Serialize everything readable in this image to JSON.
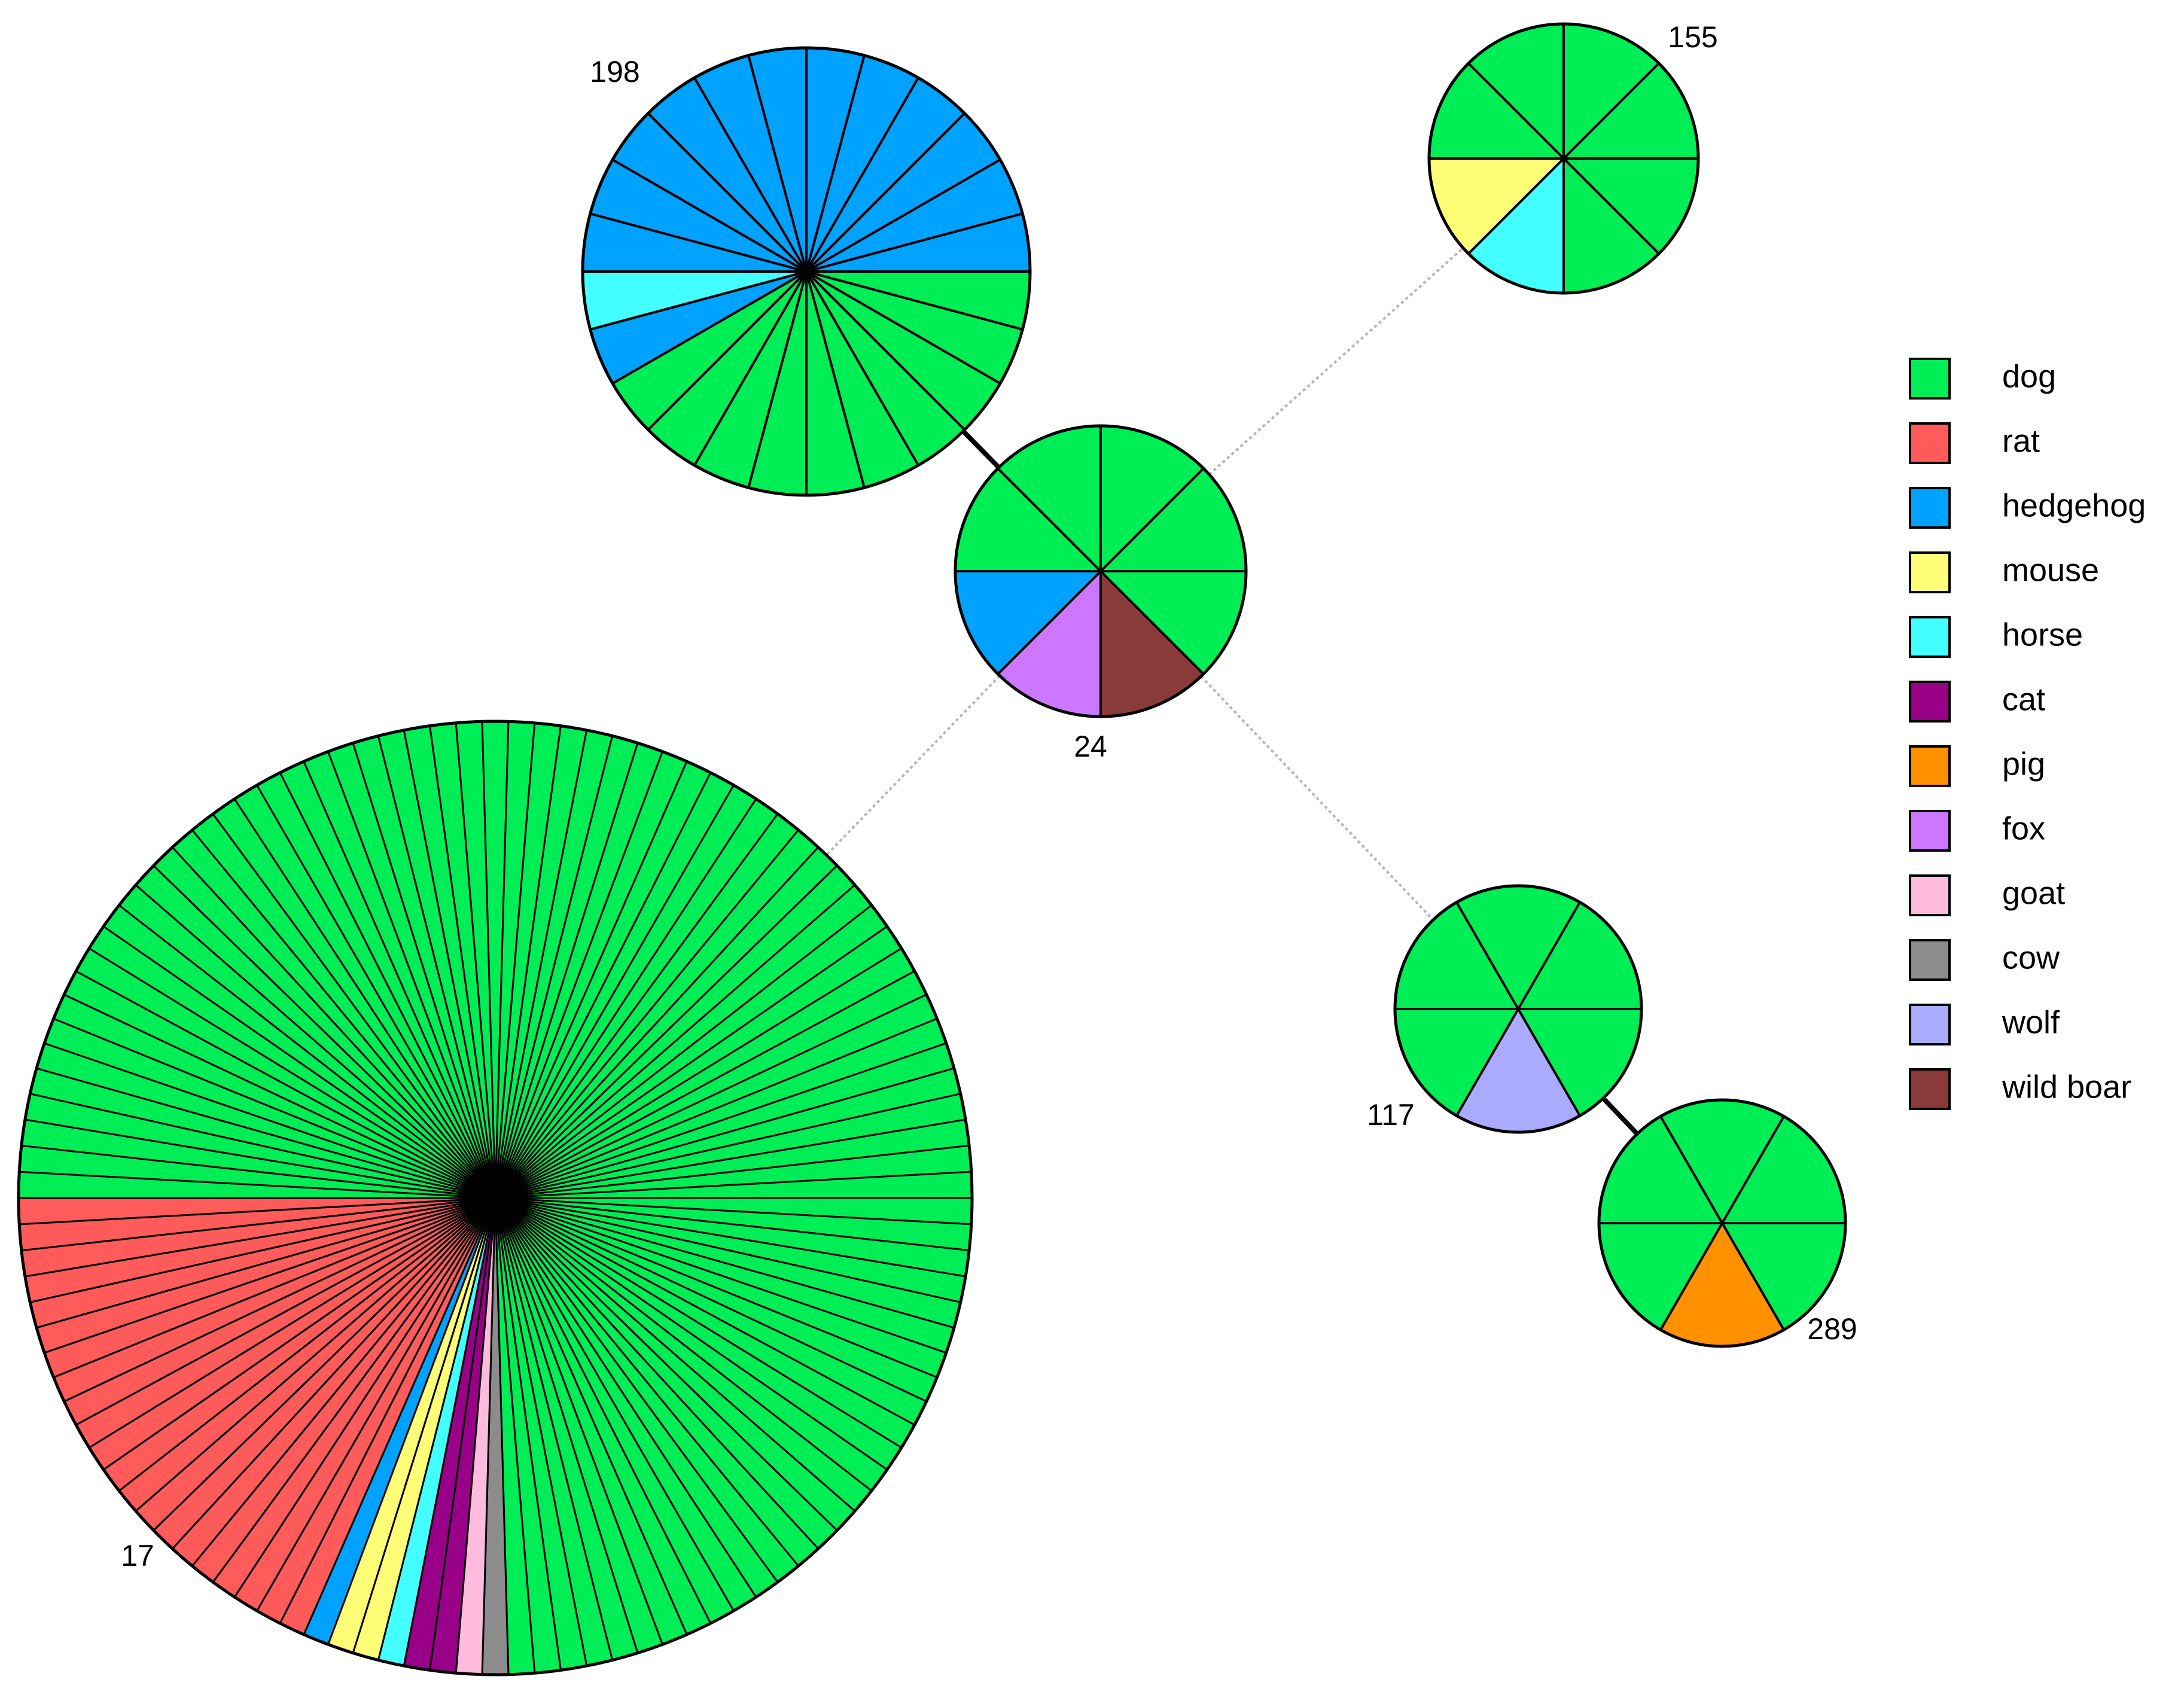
{
  "legend": [
    {
      "key": "dog",
      "label": "dog",
      "color": "#00ee55"
    },
    {
      "key": "rat",
      "label": "rat",
      "color": "#ff5b5b"
    },
    {
      "key": "hedgehog",
      "label": "hedgehog",
      "color": "#00a2ff"
    },
    {
      "key": "mouse",
      "label": "mouse",
      "color": "#ffff77"
    },
    {
      "key": "horse",
      "label": "horse",
      "color": "#44ffff"
    },
    {
      "key": "cat",
      "label": "cat",
      "color": "#990088"
    },
    {
      "key": "pig",
      "label": "pig",
      "color": "#ff9100"
    },
    {
      "key": "fox",
      "label": "fox",
      "color": "#cc77ff"
    },
    {
      "key": "goat",
      "label": "goat",
      "color": "#ffbbdd"
    },
    {
      "key": "cow",
      "label": "cow",
      "color": "#8c8c8c"
    },
    {
      "key": "wolf",
      "label": "wolf",
      "color": "#aaaaff"
    },
    {
      "key": "wild boar",
      "label": "wild boar",
      "color": "#8b3a3a"
    }
  ],
  "nodes": [
    {
      "id": "n198",
      "label": "198",
      "total": 24,
      "slices": [
        {
          "host": "dog",
          "count": 10
        },
        {
          "host": "hedgehog",
          "count": 1
        },
        {
          "host": "horse",
          "count": 1
        },
        {
          "host": "hedgehog",
          "count": 12
        }
      ]
    },
    {
      "id": "n155",
      "label": "155",
      "total": 8,
      "slices": [
        {
          "host": "dog",
          "count": 2
        },
        {
          "host": "horse",
          "count": 1
        },
        {
          "host": "mouse",
          "count": 1
        },
        {
          "host": "dog",
          "count": 4
        }
      ]
    },
    {
      "id": "n24",
      "label": "24",
      "total": 8,
      "slices": [
        {
          "host": "dog",
          "count": 1
        },
        {
          "host": "wild boar",
          "count": 1
        },
        {
          "host": "fox",
          "count": 1
        },
        {
          "host": "hedgehog",
          "count": 1
        },
        {
          "host": "dog",
          "count": 4
        }
      ]
    },
    {
      "id": "n117",
      "label": "117",
      "total": 6,
      "slices": [
        {
          "host": "dog",
          "count": 1
        },
        {
          "host": "wolf",
          "count": 1
        },
        {
          "host": "dog",
          "count": 4
        }
      ]
    },
    {
      "id": "n289",
      "label": "289",
      "total": 6,
      "slices": [
        {
          "host": "dog",
          "count": 1
        },
        {
          "host": "pig",
          "count": 1
        },
        {
          "host": "dog",
          "count": 4
        }
      ]
    },
    {
      "id": "n17",
      "label": "17",
      "total": 114,
      "slices": [
        {
          "host": "dog",
          "count": 28
        },
        {
          "host": "cow",
          "count": 1
        },
        {
          "host": "goat",
          "count": 1
        },
        {
          "host": "cat",
          "count": 2
        },
        {
          "host": "horse",
          "count": 1
        },
        {
          "host": "mouse",
          "count": 2
        },
        {
          "host": "hedgehog",
          "count": 1
        },
        {
          "host": "rat",
          "count": 21
        },
        {
          "host": "dog",
          "count": 57
        }
      ]
    }
  ],
  "edges": [
    {
      "from": "n198",
      "to": "n24",
      "style": "solid"
    },
    {
      "from": "n117",
      "to": "n289",
      "style": "solid"
    },
    {
      "from": "n24",
      "to": "n155",
      "style": "dotted"
    },
    {
      "from": "n24",
      "to": "n17",
      "style": "dotted"
    },
    {
      "from": "n24",
      "to": "n117",
      "style": "dotted"
    }
  ]
}
